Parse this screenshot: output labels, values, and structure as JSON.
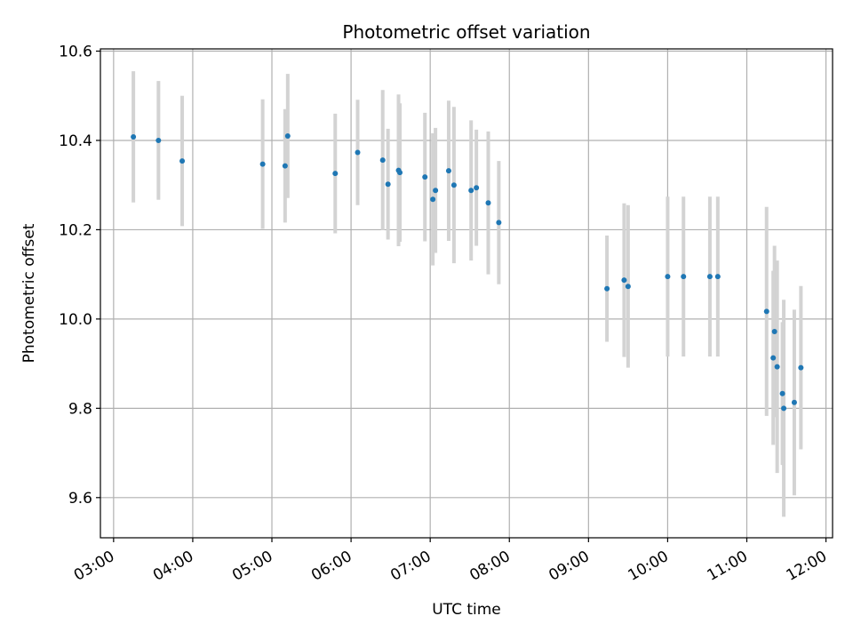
{
  "chart_data": {
    "type": "scatter",
    "title": "Photometric offset variation",
    "xlabel": "UTC time",
    "ylabel": "Photometric offset",
    "xlim": [
      "02:50",
      "12:05"
    ],
    "ylim": [
      9.51,
      10.605
    ],
    "x_ticks": [
      "03:00",
      "04:00",
      "05:00",
      "06:00",
      "07:00",
      "08:00",
      "09:00",
      "10:00",
      "11:00",
      "12:00"
    ],
    "y_ticks": [
      "9.6",
      "9.8",
      "10.0",
      "10.2",
      "10.4",
      "10.6"
    ],
    "grid": true,
    "colors": {
      "point": "#1f77b4",
      "errorbar": "#d3d3d3",
      "grid": "#b0b0b0"
    },
    "series": [
      {
        "points": [
          {
            "x": "03:15",
            "y": 10.408,
            "err": 0.147
          },
          {
            "x": "03:34",
            "y": 10.4,
            "err": 0.133
          },
          {
            "x": "03:52",
            "y": 10.354,
            "err": 0.146
          },
          {
            "x": "04:53",
            "y": 10.347,
            "err": 0.145
          },
          {
            "x": "05:10",
            "y": 10.343,
            "err": 0.127
          },
          {
            "x": "05:12",
            "y": 10.41,
            "err": 0.139
          },
          {
            "x": "05:48",
            "y": 10.326,
            "err": 0.134
          },
          {
            "x": "06:05",
            "y": 10.373,
            "err": 0.118
          },
          {
            "x": "06:24",
            "y": 10.356,
            "err": 0.157
          },
          {
            "x": "06:28",
            "y": 10.302,
            "err": 0.124
          },
          {
            "x": "06:36",
            "y": 10.333,
            "err": 0.17
          },
          {
            "x": "06:37",
            "y": 10.328,
            "err": 0.155
          },
          {
            "x": "06:56",
            "y": 10.318,
            "err": 0.144
          },
          {
            "x": "07:02",
            "y": 10.268,
            "err": 0.148
          },
          {
            "x": "07:04",
            "y": 10.288,
            "err": 0.14
          },
          {
            "x": "07:14",
            "y": 10.332,
            "err": 0.157
          },
          {
            "x": "07:18",
            "y": 10.3,
            "err": 0.175
          },
          {
            "x": "07:31",
            "y": 10.288,
            "err": 0.157
          },
          {
            "x": "07:35",
            "y": 10.294,
            "err": 0.13
          },
          {
            "x": "07:44",
            "y": 10.26,
            "err": 0.16
          },
          {
            "x": "07:52",
            "y": 10.216,
            "err": 0.138
          },
          {
            "x": "09:14",
            "y": 10.068,
            "err": 0.119
          },
          {
            "x": "09:27",
            "y": 10.087,
            "err": 0.172
          },
          {
            "x": "09:30",
            "y": 10.073,
            "err": 0.182
          },
          {
            "x": "10:00",
            "y": 10.095,
            "err": 0.179
          },
          {
            "x": "10:12",
            "y": 10.095,
            "err": 0.179
          },
          {
            "x": "10:32",
            "y": 10.095,
            "err": 0.179
          },
          {
            "x": "10:38",
            "y": 10.095,
            "err": 0.179
          },
          {
            "x": "11:15",
            "y": 10.017,
            "err": 0.234
          },
          {
            "x": "11:20",
            "y": 9.913,
            "err": 0.195
          },
          {
            "x": "11:21",
            "y": 9.972,
            "err": 0.192
          },
          {
            "x": "11:23",
            "y": 9.893,
            "err": 0.238
          },
          {
            "x": "11:27",
            "y": 9.833,
            "err": 0.16
          },
          {
            "x": "11:28",
            "y": 9.8,
            "err": 0.243
          },
          {
            "x": "11:36",
            "y": 9.813,
            "err": 0.208
          },
          {
            "x": "11:41",
            "y": 9.891,
            "err": 0.183
          }
        ]
      }
    ]
  }
}
